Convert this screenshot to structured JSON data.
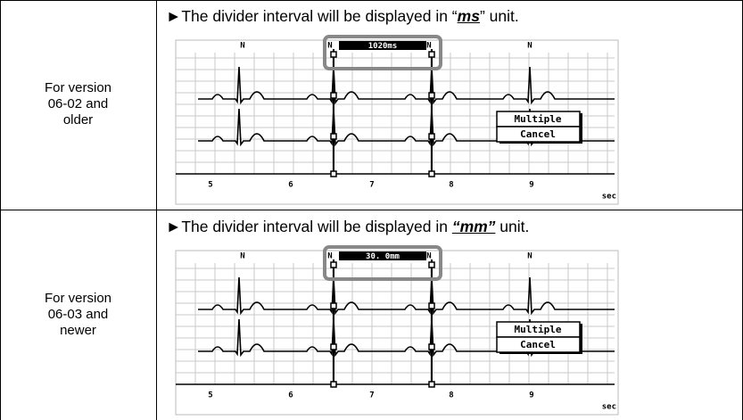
{
  "rows": [
    {
      "label": [
        "For version",
        "06-02 and",
        "older"
      ],
      "note_prefix": "►The divider interval will be displayed in “",
      "note_unit": "ms",
      "note_suffix": "” unit.",
      "screen": {
        "markers": [
          "N",
          "N",
          "N",
          "N"
        ],
        "interval": "1020ms",
        "buttons": [
          "Multiple",
          "Cancel"
        ],
        "axis_labels": [
          "5",
          "6",
          "7",
          "8",
          "9"
        ],
        "axis_unit": "sec"
      }
    },
    {
      "label": [
        "For version",
        "06-03 and",
        "newer"
      ],
      "note_prefix": "►The divider interval will be displayed in ",
      "note_unit": "“mm”",
      "note_suffix": " unit.",
      "screen": {
        "markers": [
          "N",
          "N",
          "N",
          "N"
        ],
        "interval": "30. 0mm",
        "buttons": [
          "Multiple",
          "Cancel"
        ],
        "axis_labels": [
          "5",
          "6",
          "7",
          "8",
          "9"
        ],
        "axis_unit": "sec"
      }
    }
  ]
}
